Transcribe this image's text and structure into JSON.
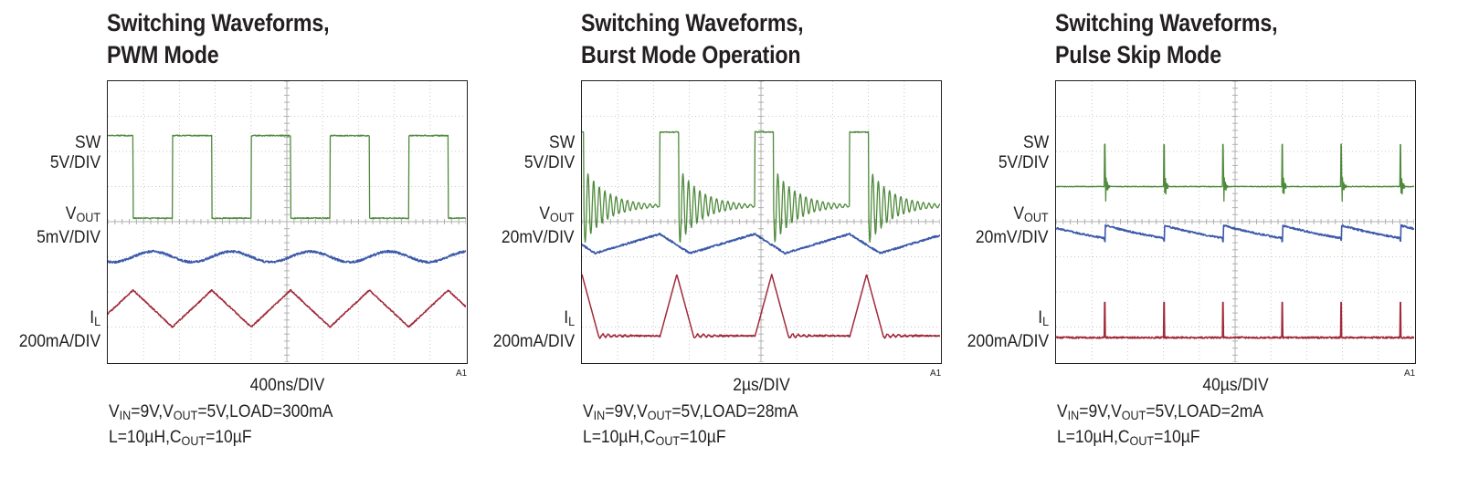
{
  "chart_data": [
    {
      "type": "line",
      "title_lines": [
        "Switching Waveforms,",
        "PWM Mode"
      ],
      "xlabel": "400ns/DIV",
      "marker": "A1",
      "conditions": [
        [
          {
            "t": "V"
          },
          {
            "s": "IN"
          },
          {
            "t": "=9V,V"
          },
          {
            "s": "OUT"
          },
          {
            "t": "=5V,LOAD=300mA"
          }
        ],
        [
          {
            "t": "L=10µH,C"
          },
          {
            "s": "OUT"
          },
          {
            "t": "=10µF"
          }
        ]
      ],
      "grid": true,
      "x_divisions": 10,
      "y_divisions": 8,
      "channels": [
        {
          "name_main": "SW",
          "name_sub": "",
          "scale": "5V/DIV",
          "color": "#4f8a3c"
        },
        {
          "name_main": "V",
          "name_sub": "OUT",
          "scale": "5mV/DIV",
          "color": "#3c5aa8"
        },
        {
          "name_main": "I",
          "name_sub": "L",
          "scale": "200mA/DIV",
          "color": "#a02a3a"
        }
      ],
      "mode": "pwm",
      "period_div": 2.2,
      "duty": 0.5
    },
    {
      "type": "line",
      "title_lines": [
        "Switching Waveforms,",
        "Burst Mode Operation"
      ],
      "xlabel": "2µs/DIV",
      "marker": "A1",
      "conditions": [
        [
          {
            "t": "V"
          },
          {
            "s": "IN"
          },
          {
            "t": "=9V,V"
          },
          {
            "s": "OUT"
          },
          {
            "t": "=5V,LOAD=28mA"
          }
        ],
        [
          {
            "t": "L=10µH,C"
          },
          {
            "s": "OUT"
          },
          {
            "t": "=10µF"
          }
        ]
      ],
      "grid": true,
      "x_divisions": 10,
      "y_divisions": 8,
      "channels": [
        {
          "name_main": "SW",
          "name_sub": "",
          "scale": "5V/DIV",
          "color": "#4f8a3c"
        },
        {
          "name_main": "V",
          "name_sub": "OUT",
          "scale": "20mV/DIV",
          "color": "#3c5aa8"
        },
        {
          "name_main": "I",
          "name_sub": "L",
          "scale": "200mA/DIV",
          "color": "#a02a3a"
        }
      ],
      "mode": "burst",
      "period_div": 2.65,
      "duty": 0.2
    },
    {
      "type": "line",
      "title_lines": [
        "Switching Waveforms,",
        "Pulse Skip Mode"
      ],
      "xlabel": "40µs/DIV",
      "marker": "A1",
      "conditions": [
        [
          {
            "t": "V"
          },
          {
            "s": "IN"
          },
          {
            "t": "=9V,V"
          },
          {
            "s": "OUT"
          },
          {
            "t": "=5V,LOAD=2mA"
          }
        ],
        [
          {
            "t": "L=10µH,C"
          },
          {
            "s": "OUT"
          },
          {
            "t": "=10µF"
          }
        ]
      ],
      "grid": true,
      "x_divisions": 10,
      "y_divisions": 8,
      "channels": [
        {
          "name_main": "SW",
          "name_sub": "",
          "scale": "5V/DIV",
          "color": "#4f8a3c"
        },
        {
          "name_main": "V",
          "name_sub": "OUT",
          "scale": "20mV/DIV",
          "color": "#3c5aa8"
        },
        {
          "name_main": "I",
          "name_sub": "L",
          "scale": "200mA/DIV",
          "color": "#a02a3a"
        }
      ],
      "mode": "pulse_skip",
      "period_div": 1.65,
      "duty": 0.02
    }
  ]
}
